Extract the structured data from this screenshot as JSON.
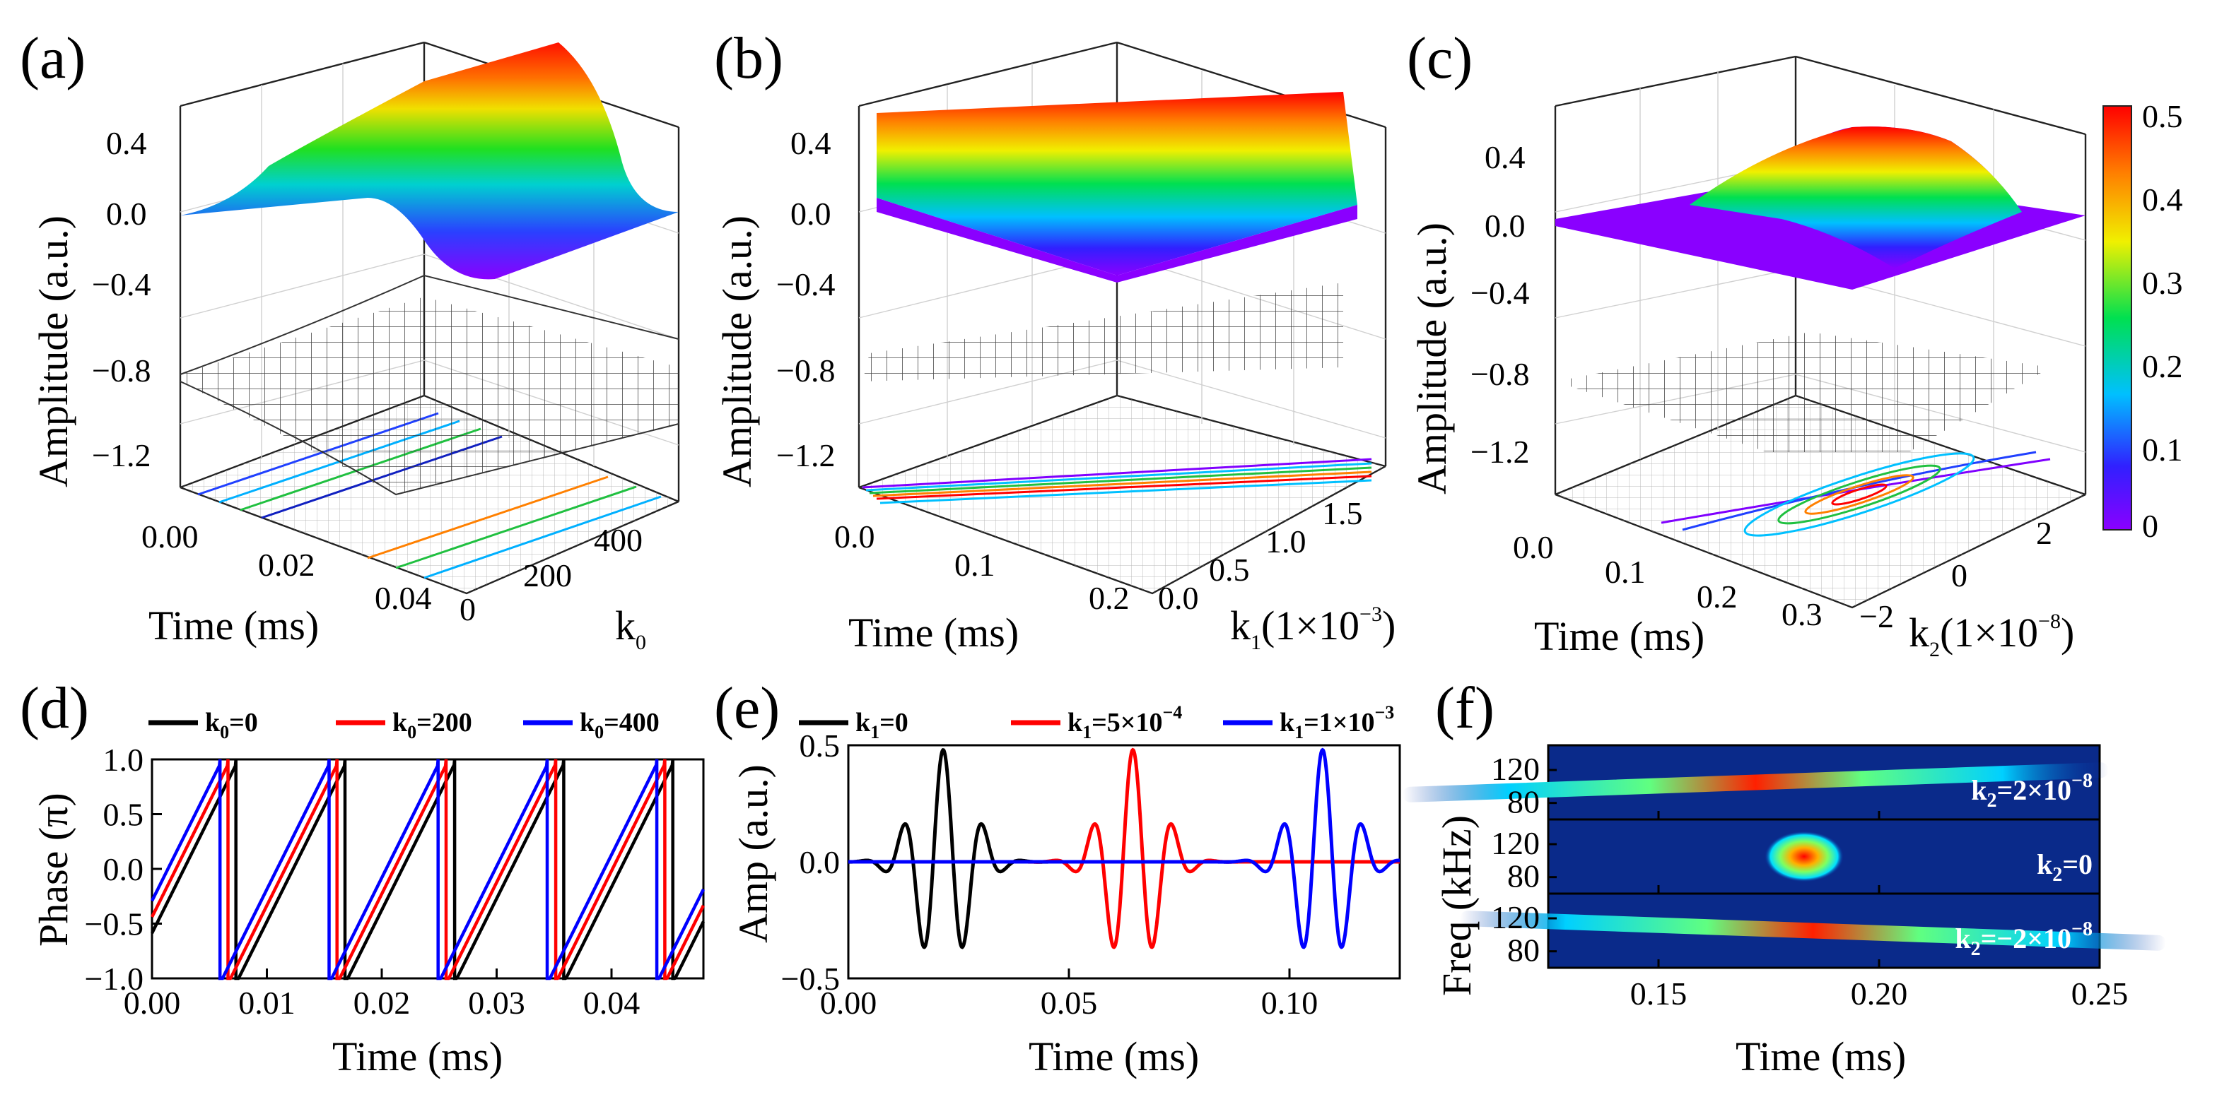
{
  "panels": {
    "a": {
      "label": "(a)",
      "zlabel": "Amplitude (a.u.)",
      "xlabel": "Time (ms)",
      "ylabel": "k",
      "ylabel_sub": "0",
      "zticks": [
        "0.4",
        "0.0",
        "−0.4",
        "−0.8",
        "−1.2"
      ],
      "xticks": [
        "0.00",
        "0.02",
        "0.04"
      ],
      "yticks": [
        "0",
        "200",
        "400"
      ]
    },
    "b": {
      "label": "(b)",
      "zlabel": "Amplitude (a.u.)",
      "xlabel": "Time (ms)",
      "ylabel": "k",
      "ylabel_sub": "1",
      "ylabel_suffix": "(1×10",
      "ylabel_sup": "−3",
      "ylabel_close": ")",
      "zticks": [
        "0.4",
        "0.0",
        "−0.4",
        "−0.8",
        "−1.2"
      ],
      "xticks": [
        "0.0",
        "0.1",
        "0.2"
      ],
      "yticks": [
        "0.0",
        "0.5",
        "1.0",
        "1.5"
      ]
    },
    "c": {
      "label": "(c)",
      "zlabel": "Amplitude (a.u.)",
      "xlabel": "Time (ms)",
      "ylabel": "k",
      "ylabel_sub": "2",
      "ylabel_suffix": "(1×10",
      "ylabel_sup": "−8",
      "ylabel_close": ")",
      "zticks": [
        "0.4",
        "0.0",
        "−0.4",
        "−0.8",
        "−1.2"
      ],
      "xticks": [
        "0.0",
        "0.1",
        "0.2",
        "0.3"
      ],
      "yticks": [
        "−2",
        "0",
        "2"
      ]
    },
    "colorbar": {
      "ticks": [
        "0.5",
        "0.4",
        "0.3",
        "0.2",
        "0.1",
        "0"
      ]
    },
    "d": {
      "label": "(d)",
      "ylabel": "Phase (π)",
      "xlabel": "Time (ms)"
    },
    "e": {
      "label": "(e)",
      "ylabel": "Amp (a.u.)",
      "xlabel": "Time (ms)"
    },
    "f": {
      "label": "(f)",
      "ylabel": "Freq (kHz)",
      "xlabel": "Time (ms)",
      "rows": [
        {
          "prefix": "k",
          "sub": "2",
          "suffix": "=2×10",
          "sup": "−8"
        },
        {
          "prefix": "k",
          "sub": "2",
          "suffix": "=0",
          "sup": ""
        },
        {
          "prefix": "k",
          "sub": "2",
          "suffix": "=−2×10",
          "sup": "−8"
        }
      ]
    }
  },
  "chart_data": [
    {
      "panel": "d",
      "type": "line",
      "title": "",
      "xlabel": "Time (ms)",
      "ylabel": "Phase (π)",
      "xlim": [
        0,
        0.048
      ],
      "ylim": [
        -1.0,
        1.0
      ],
      "xticks": [
        0.0,
        0.01,
        0.02,
        0.03,
        0.04
      ],
      "yticks": [
        -1.0,
        -0.5,
        0.0,
        0.5,
        1.0
      ],
      "sawtooth_period": 0.0095,
      "series": [
        {
          "name": "k",
          "sub": "0",
          "eq": "=0",
          "color": "#000000",
          "shift": 0.0
        },
        {
          "name": "k",
          "sub": "0",
          "eq": "=200",
          "color": "#ff0000",
          "shift": 0.0007
        },
        {
          "name": "k",
          "sub": "0",
          "eq": "=400",
          "color": "#0000ff",
          "shift": 0.0014
        }
      ]
    },
    {
      "panel": "e",
      "type": "line",
      "title": "",
      "xlabel": "Time (ms)",
      "ylabel": "Amp (a.u.)",
      "xlim": [
        0,
        0.125
      ],
      "ylim": [
        -0.5,
        0.5
      ],
      "xticks": [
        0.0,
        0.05,
        0.1
      ],
      "yticks": [
        -0.5,
        0.0,
        0.5
      ],
      "carrier_period": 0.0091,
      "envelope_width": 0.0085,
      "amplitude": 0.48,
      "series": [
        {
          "name": "k",
          "sub": "1",
          "eq": "=0",
          "sup": "",
          "color": "#000000",
          "center": 0.0215
        },
        {
          "name": "k",
          "sub": "1",
          "eq": "=5×10",
          "sup": "−4",
          "color": "#ff0000",
          "center": 0.0645
        },
        {
          "name": "k",
          "sub": "1",
          "eq": "=1×10",
          "sup": "−3",
          "color": "#0000ff",
          "center": 0.1075
        }
      ]
    },
    {
      "panel": "f",
      "type": "heatmap",
      "title": "",
      "xlabel": "Time (ms)",
      "ylabel": "Freq (kHz)",
      "xlim": [
        0.125,
        0.25
      ],
      "xticks": [
        0.15,
        0.2,
        0.25
      ],
      "ylim": [
        60,
        150
      ],
      "yticks": [
        80,
        120
      ],
      "rows": [
        {
          "name": "k2=2e-8",
          "center_time": 0.172,
          "center_freq": 105,
          "chirp_kHz_per_ms": 380
        },
        {
          "name": "k2=0",
          "center_time": 0.183,
          "center_freq": 105,
          "chirp_kHz_per_ms": 0
        },
        {
          "name": "k2=-2e-8",
          "center_time": 0.185,
          "center_freq": 105,
          "chirp_kHz_per_ms": -380
        }
      ]
    }
  ]
}
